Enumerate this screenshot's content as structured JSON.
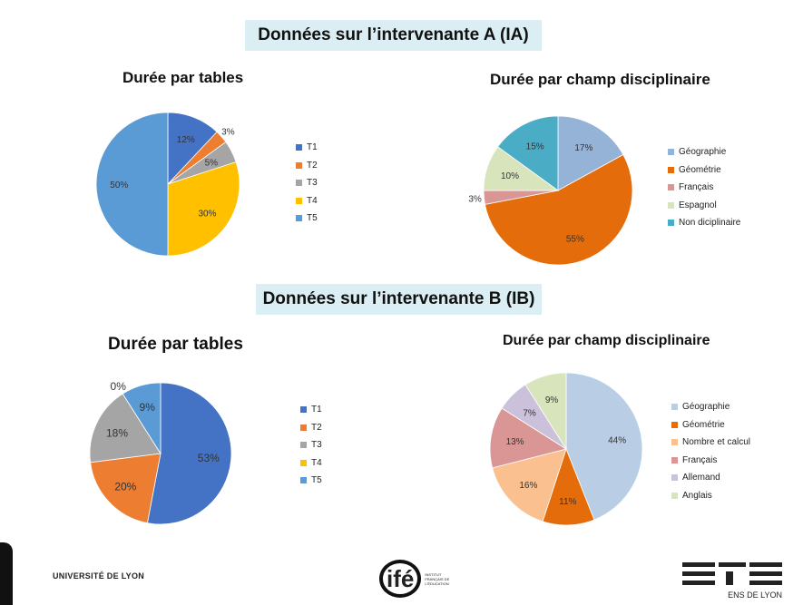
{
  "banners": {
    "a": "Données sur l’intervenante A (IA)",
    "b": "Données sur l’intervenante B (IB)"
  },
  "chart_data": [
    {
      "id": "a_tables",
      "type": "pie",
      "title": "Durée par tables",
      "categories": [
        "T1",
        "T2",
        "T3",
        "T4",
        "T5"
      ],
      "values": [
        12,
        3,
        5,
        30,
        50
      ],
      "labels": [
        "12%",
        "3%",
        "5%",
        "30%",
        "50%"
      ],
      "colors": [
        "#4472c4",
        "#ed7d31",
        "#a5a5a5",
        "#ffc000",
        "#5b9bd5"
      ],
      "legend": "right"
    },
    {
      "id": "a_champ",
      "type": "pie",
      "title": "Durée par champ disciplinaire",
      "categories": [
        "Géographie",
        "Géométrie",
        "Français",
        "Espagnol",
        "Non diciplinaire"
      ],
      "values": [
        17,
        55,
        3,
        10,
        15
      ],
      "labels": [
        "17%",
        "55%",
        "3%",
        "10%",
        "15%"
      ],
      "colors": [
        "#95b3d7",
        "#e46c0a",
        "#d99694",
        "#d7e4bc",
        "#4bacc6"
      ],
      "legend": "right"
    },
    {
      "id": "b_tables",
      "type": "pie",
      "title": "Durée par tables",
      "categories": [
        "T1",
        "T2",
        "T3",
        "T4",
        "T5"
      ],
      "values": [
        53,
        20,
        18,
        0,
        9
      ],
      "labels": [
        "53%",
        "20%",
        "18%",
        "0%",
        "9%"
      ],
      "colors": [
        "#4472c4",
        "#ed7d31",
        "#a5a5a5",
        "#ffc000",
        "#5b9bd5"
      ],
      "legend": "right"
    },
    {
      "id": "b_champ",
      "type": "pie",
      "title": "Durée par champ disciplinaire",
      "categories": [
        "Géographie",
        "Géométrie",
        "Nombre et calcul",
        "Français",
        "Allemand",
        "Anglais"
      ],
      "values": [
        44,
        11,
        16,
        13,
        7,
        9
      ],
      "labels": [
        "44%",
        "11%",
        "16%",
        "13%",
        "7%",
        "9%"
      ],
      "colors": [
        "#b9cde5",
        "#e46c0a",
        "#fac090",
        "#d99694",
        "#ccc1da",
        "#d7e4bc"
      ],
      "legend": "right"
    }
  ],
  "logos": {
    "udl": "UNIVERSITÉ DE LYON",
    "ife": "ifé",
    "ife_sub": "INSTITUT FRANÇAIS DE L'ÉDUCATION",
    "ens": "ENS DE LYON"
  }
}
